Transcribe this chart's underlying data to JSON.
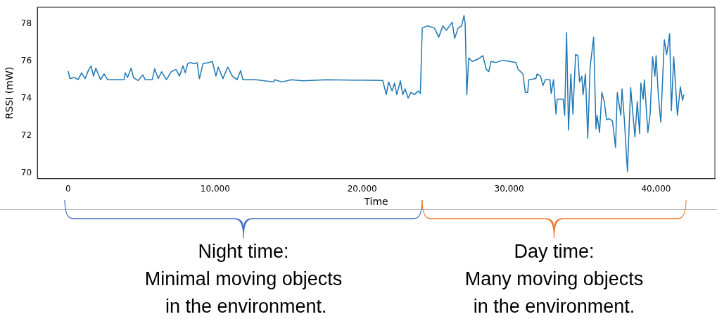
{
  "chart_data": {
    "type": "line",
    "xlabel": "Time",
    "ylabel": "RSSI (mW)",
    "xlim": [
      -2100,
      44000
    ],
    "ylim": [
      69.7,
      78.9
    ],
    "xticks": [
      0,
      {
        "value": 10000,
        "label": "10,000"
      },
      {
        "value": 20000,
        "label": "20,000"
      },
      {
        "value": 30000,
        "label": "30,000"
      },
      {
        "value": 40000,
        "label": "40,000"
      }
    ],
    "yticks": [
      70,
      72,
      74,
      76,
      78
    ],
    "grid": false,
    "legend": false,
    "marker": "none",
    "line_style": "solid",
    "series": [
      {
        "color": "#1f77b4",
        "x": [
          0,
          110,
          430,
          670,
          910,
          1150,
          1400,
          1560,
          1720,
          1880,
          2040,
          2200,
          2440,
          2680,
          3000,
          3800,
          3880,
          4040,
          4280,
          4440,
          4760,
          5080,
          5240,
          5720,
          5880,
          6120,
          6360,
          6680,
          7010,
          7330,
          7570,
          7810,
          7970,
          8130,
          8290,
          8610,
          8770,
          8930,
          9170,
          9570,
          9810,
          10050,
          10210,
          10530,
          10850,
          11170,
          11490,
          11730,
          11890,
          12780,
          13980,
          14060,
          14540,
          15180,
          15980,
          17590,
          19150,
          21400,
          21640,
          21800,
          22040,
          22200,
          22360,
          22600,
          22760,
          22920,
          23130,
          23320,
          23560,
          23800,
          23960,
          24090,
          24440,
          24920,
          25210,
          25490,
          25730,
          26130,
          26290,
          26530,
          26770,
          26930,
          27010,
          27120,
          27250,
          27490,
          27890,
          28210,
          28450,
          28610,
          28770,
          29100,
          29580,
          30060,
          30460,
          30620,
          30940,
          31100,
          31260,
          31340,
          31820,
          31900,
          32140,
          32300,
          32460,
          32780,
          32860,
          33020,
          33190,
          33270,
          33670,
          33780,
          33910,
          34040,
          34200,
          34340,
          34520,
          34680,
          34790,
          34950,
          35030,
          35190,
          35350,
          35510,
          35750,
          35910,
          35990,
          36150,
          36310,
          36470,
          36630,
          36790,
          37030,
          37240,
          37360,
          37600,
          37680,
          37840,
          38050,
          38270,
          38400,
          38560,
          38720,
          38880,
          38960,
          39120,
          39200,
          39440,
          39600,
          39760,
          39920,
          40000,
          40160,
          40320,
          40560,
          40720,
          40920,
          41040,
          41200,
          41450,
          41650,
          41800,
          41890
        ],
        "values": [
          75.47,
          75.07,
          75.13,
          75.01,
          75.38,
          75.07,
          75.56,
          75.75,
          75.2,
          75.63,
          75.32,
          75.01,
          75.32,
          75.01,
          75.01,
          75.01,
          75.38,
          75.13,
          75.63,
          75.13,
          74.97,
          75.26,
          75.01,
          75.01,
          75.59,
          75.07,
          75.44,
          75.01,
          75.44,
          75.56,
          75.2,
          75.75,
          75.38,
          75.87,
          75.93,
          75.87,
          75.93,
          75.07,
          75.87,
          75.93,
          75.99,
          75.2,
          75.69,
          75.07,
          75.69,
          75.2,
          75.01,
          75.5,
          75.01,
          75.01,
          74.89,
          75.01,
          74.89,
          75.01,
          74.95,
          75.01,
          74.99,
          74.97,
          74.21,
          74.89,
          74.4,
          74.83,
          74.21,
          74.95,
          74.21,
          74.52,
          74.03,
          74.33,
          74.21,
          74.4,
          74.27,
          77.78,
          77.9,
          77.78,
          77.29,
          77.9,
          77.66,
          78.09,
          77.23,
          77.78,
          77.9,
          78.46,
          78.02,
          74.21,
          76.18,
          75.99,
          76.12,
          76.3,
          75.56,
          75.44,
          75.99,
          75.93,
          76.06,
          75.99,
          75.93,
          75.56,
          75.32,
          74.33,
          74.33,
          75.01,
          75.07,
          75.32,
          75.2,
          74.7,
          75.01,
          75.01,
          74.27,
          75.01,
          73.17,
          73.97,
          73.97,
          73.1,
          77.53,
          72.31,
          75.32,
          73.17,
          76.36,
          76.3,
          74.89,
          75.2,
          74.21,
          75.32,
          71.87,
          75.69,
          77.29,
          72.37,
          73.1,
          72.18,
          74.33,
          73.84,
          72.86,
          72.92,
          72.8,
          71.38,
          74.33,
          73.1,
          74.52,
          72.86,
          70.09,
          74.58,
          73.35,
          71.94,
          73.84,
          72.12,
          74.83,
          73.97,
          75.01,
          72.18,
          73.23,
          76.24,
          75.2,
          76.3,
          74.09,
          72.74,
          77.16,
          76.36,
          77.47,
          73.35,
          76.24,
          73.1,
          74.64,
          73.9,
          74.21
        ]
      }
    ],
    "annotations": [
      "Night time:\nMinimal moving objects\n in the environment.",
      "Day time:\nMany moving objects\nin the environment."
    ]
  }
}
